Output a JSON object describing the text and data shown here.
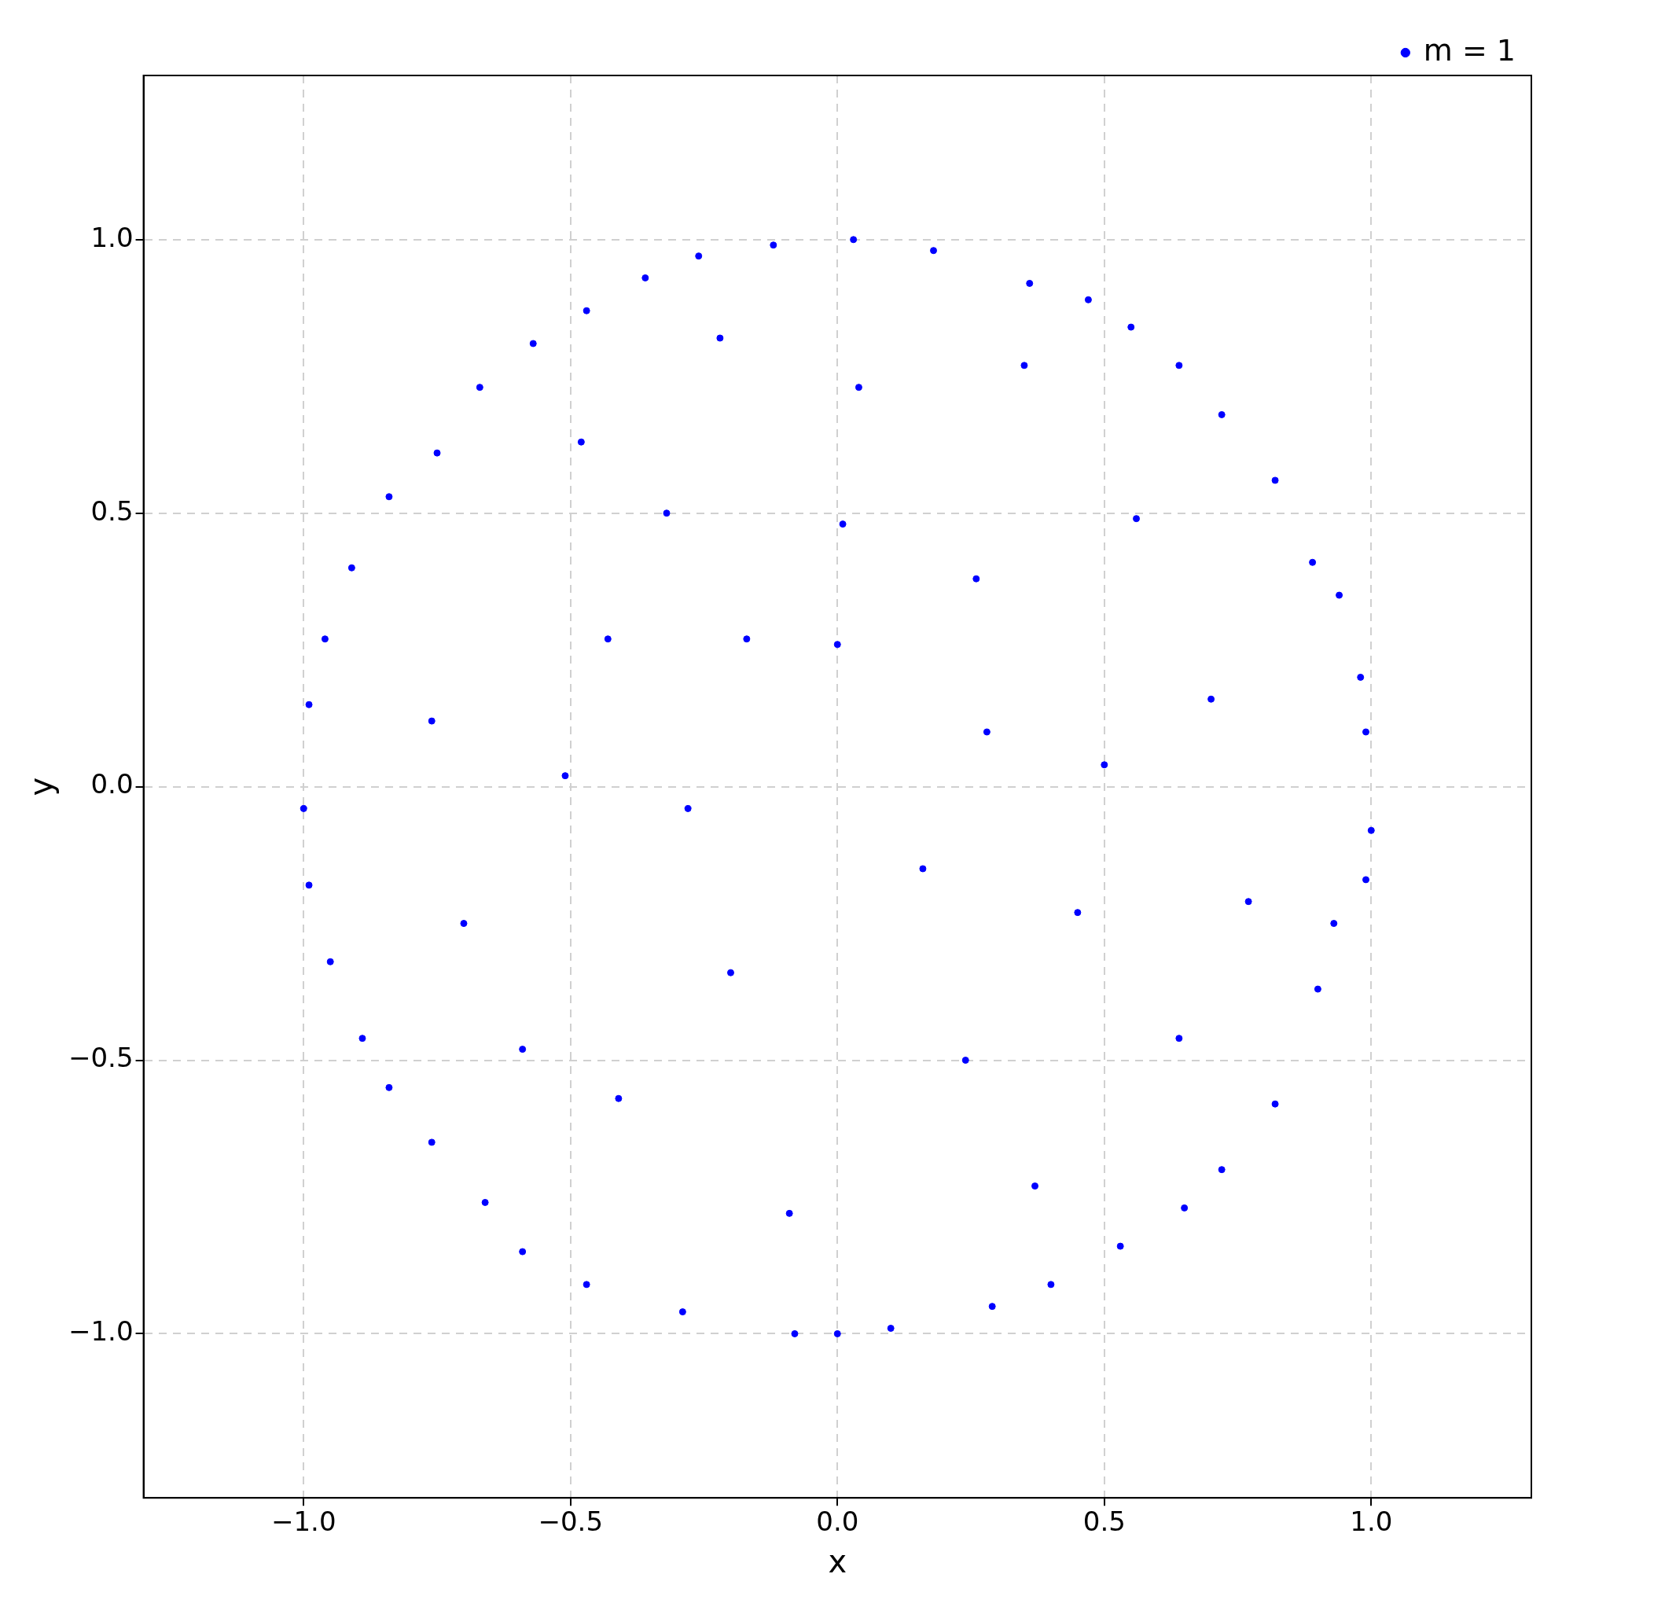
{
  "chart_data": {
    "type": "scatter",
    "xlabel": "x",
    "ylabel": "y",
    "xlim": [
      -1.3,
      1.3
    ],
    "ylim": [
      -1.3,
      1.3
    ],
    "xticks": [
      {
        "value": -1,
        "label": "−1.0"
      },
      {
        "value": -0.5,
        "label": "−0.5"
      },
      {
        "value": 0,
        "label": "0.0"
      },
      {
        "value": 0.5,
        "label": "0.5"
      },
      {
        "value": 1,
        "label": "1.0"
      }
    ],
    "yticks": [
      {
        "value": -1,
        "label": "−1.0"
      },
      {
        "value": -0.5,
        "label": "−0.5"
      },
      {
        "value": 0,
        "label": "0.0"
      },
      {
        "value": 0.5,
        "label": "0.5"
      },
      {
        "value": 1,
        "label": "1.0"
      }
    ],
    "grid": true,
    "legend": "top right",
    "marker": "circle",
    "series": [
      {
        "name": "m = 1",
        "color": "#0000ff",
        "x": [
          -1.0,
          0.03,
          0,
          1.0,
          -0.12,
          0.94,
          0.98,
          0.89,
          0.82,
          0.72,
          0.64,
          0.55,
          0.47,
          0.36,
          0.18,
          -0.26,
          -0.36,
          -0.47,
          -0.57,
          -0.67,
          -0.75,
          -0.84,
          -0.91,
          -0.96,
          -0.99,
          -0.99,
          -0.95,
          -0.89,
          -0.84,
          -0.76,
          -0.66,
          -0.59,
          -0.47,
          -0.29,
          -0.08,
          0.1,
          0.29,
          0.4,
          0.53,
          0.65,
          0.72,
          0.82,
          0.9,
          0.93,
          0.99,
          0.99,
          0,
          -0.32,
          0.26,
          0.28,
          -0.51,
          0.5,
          -0.2,
          0.24,
          -0.41,
          0.37,
          0.04,
          -0.48,
          0.56,
          0.7,
          0.77,
          -0.76,
          -0.7,
          -0.17,
          0.16,
          -0.28,
          0.35,
          -0.22,
          -0.09,
          0.64,
          -0.59,
          0.45,
          -0.43,
          0.01
        ],
        "values": [
          -0.04,
          1.0,
          -1.0,
          -0.08,
          0.99,
          0.35,
          0.2,
          0.41,
          0.56,
          0.68,
          0.77,
          0.84,
          0.89,
          0.92,
          0.98,
          0.97,
          0.93,
          0.87,
          0.81,
          0.73,
          0.61,
          0.53,
          0.4,
          0.27,
          0.15,
          -0.18,
          -0.32,
          -0.46,
          -0.55,
          -0.65,
          -0.76,
          -0.85,
          -0.91,
          -0.96,
          -1.0,
          -0.99,
          -0.95,
          -0.91,
          -0.84,
          -0.77,
          -0.7,
          -0.58,
          -0.37,
          -0.25,
          -0.17,
          0.1,
          0.26,
          0.5,
          0.38,
          0.1,
          0.02,
          0.04,
          -0.34,
          -0.5,
          -0.57,
          -0.73,
          0.73,
          0.63,
          0.49,
          0.16,
          -0.21,
          0.12,
          -0.25,
          0.27,
          -0.15,
          -0.04,
          0.77,
          0.82,
          -0.78,
          -0.46,
          -0.48,
          -0.23,
          0.27,
          0.48
        ]
      }
    ]
  }
}
